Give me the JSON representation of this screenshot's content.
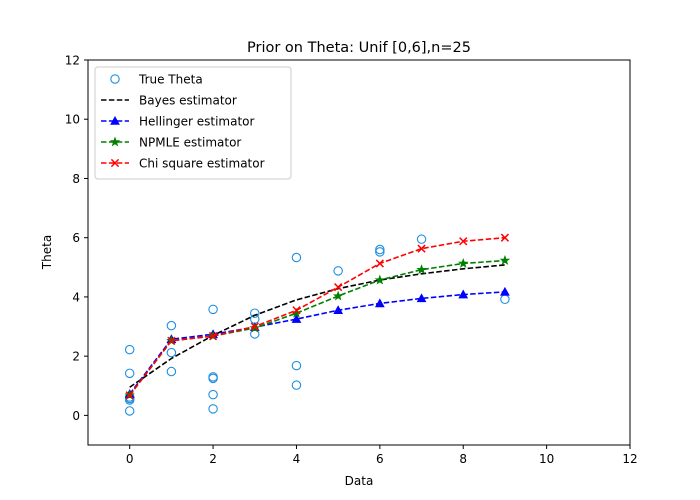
{
  "chart_data": {
    "type": "scatter",
    "title": "Prior on Theta: Unif [0,6],n=25",
    "xlabel": "Data",
    "ylabel": "Theta",
    "xlim": [
      -1,
      12
    ],
    "ylim": [
      -1,
      12
    ],
    "xticks": [
      0,
      2,
      4,
      6,
      8,
      10,
      12
    ],
    "yticks": [
      0,
      2,
      4,
      6,
      8,
      10,
      12
    ],
    "grid": false,
    "legend_position": "top-left",
    "scatter": {
      "name": "True Theta",
      "color": "#1f8fe0",
      "marker": "circle-open",
      "points": [
        [
          0,
          2.22
        ],
        [
          0,
          1.42
        ],
        [
          0,
          0.62
        ],
        [
          0,
          0.57
        ],
        [
          0,
          0.52
        ],
        [
          0,
          0.15
        ],
        [
          1,
          3.03
        ],
        [
          1,
          2.12
        ],
        [
          1,
          1.48
        ],
        [
          2,
          3.58
        ],
        [
          2,
          1.3
        ],
        [
          2,
          1.25
        ],
        [
          2,
          0.7
        ],
        [
          2,
          0.22
        ],
        [
          3,
          3.45
        ],
        [
          3,
          3.25
        ],
        [
          3,
          2.75
        ],
        [
          4,
          5.33
        ],
        [
          4,
          1.68
        ],
        [
          4,
          1.02
        ],
        [
          5,
          4.88
        ],
        [
          6,
          5.6
        ],
        [
          6,
          5.52
        ],
        [
          7,
          5.95
        ],
        [
          9,
          3.92
        ]
      ]
    },
    "series": [
      {
        "name": "Bayes estimator",
        "color": "#000000",
        "marker": "none",
        "x": [
          0,
          1,
          2,
          3,
          4,
          5,
          6,
          7,
          8,
          9
        ],
        "values": [
          0.95,
          1.92,
          2.7,
          3.38,
          3.9,
          4.28,
          4.57,
          4.78,
          4.95,
          5.08
        ]
      },
      {
        "name": "Hellinger estimator",
        "color": "#0000ff",
        "marker": "triangle-up",
        "x": [
          0,
          1,
          2,
          3,
          4,
          5,
          6,
          7,
          8,
          9
        ],
        "values": [
          0.72,
          2.57,
          2.74,
          2.98,
          3.25,
          3.55,
          3.78,
          3.95,
          4.08,
          4.17
        ]
      },
      {
        "name": "NPMLE estimator",
        "color": "#008000",
        "marker": "star",
        "x": [
          0,
          1,
          2,
          3,
          4,
          5,
          6,
          7,
          8,
          9
        ],
        "values": [
          0.68,
          2.52,
          2.68,
          2.95,
          3.45,
          4.03,
          4.57,
          4.92,
          5.13,
          5.23
        ]
      },
      {
        "name": "Chi square estimator",
        "color": "#ff0000",
        "marker": "x",
        "x": [
          0,
          1,
          2,
          3,
          4,
          5,
          6,
          7,
          8,
          9
        ],
        "values": [
          0.68,
          2.52,
          2.68,
          3.0,
          3.55,
          4.33,
          5.13,
          5.63,
          5.88,
          6.0
        ]
      }
    ]
  }
}
